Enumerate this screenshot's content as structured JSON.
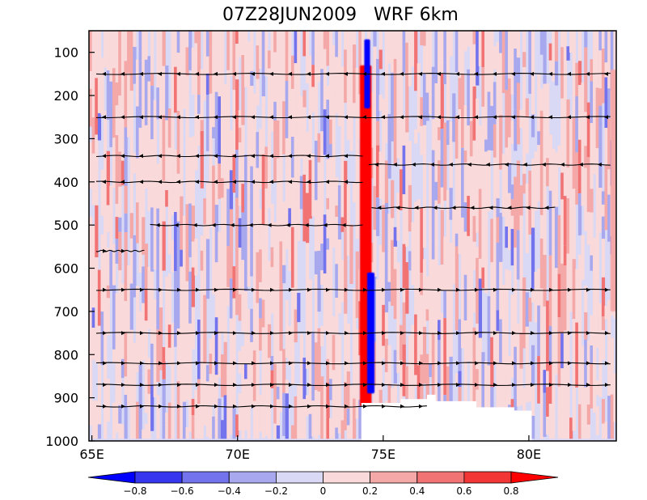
{
  "chart_data": {
    "type": "heatmap",
    "title_left": "07Z28JUN2009",
    "title_right": "WRF 6km",
    "xlabel": "",
    "ylabel": "",
    "x_range": [
      64.9,
      83.0
    ],
    "y_range": [
      1000,
      50
    ],
    "y_axis_reversed": true,
    "x_ticks": [
      {
        "value": 65,
        "label": "65E"
      },
      {
        "value": 70,
        "label": "70E"
      },
      {
        "value": 75,
        "label": "75E"
      },
      {
        "value": 80,
        "label": "80E"
      }
    ],
    "y_ticks": [
      {
        "value": 100,
        "label": "100"
      },
      {
        "value": 200,
        "label": "200"
      },
      {
        "value": 300,
        "label": "300"
      },
      {
        "value": 400,
        "label": "400"
      },
      {
        "value": 500,
        "label": "500"
      },
      {
        "value": 600,
        "label": "600"
      },
      {
        "value": 700,
        "label": "700"
      },
      {
        "value": 800,
        "label": "800"
      },
      {
        "value": 900,
        "label": "900"
      },
      {
        "value": 1000,
        "label": "1000"
      }
    ],
    "colorbar": {
      "levels": [
        "-0.8",
        "-0.6",
        "-0.4",
        "-0.2",
        "0",
        "0.2",
        "0.4",
        "0.6",
        "0.8"
      ],
      "colors": [
        "#0000ff",
        "#3636ee",
        "#7373ee",
        "#a8a8ee",
        "#d9d9f5",
        "#f9d9d9",
        "#f4a8a8",
        "#f27373",
        "#f23636",
        "#ff0000"
      ]
    },
    "shaded_features": [
      {
        "name": "strong-updraft-band",
        "x_range": [
          74.2,
          74.6
        ],
        "p_range": [
          920,
          130
        ],
        "value": 0.9
      },
      {
        "name": "upper-downdraft-core",
        "x_range": [
          74.35,
          74.55
        ],
        "p_range": [
          230,
          70
        ],
        "value": -0.9
      },
      {
        "name": "lower-downdraft-core",
        "x_range": [
          74.45,
          74.7
        ],
        "p_range": [
          890,
          610
        ],
        "value": -0.9
      },
      {
        "name": "east-edge-updraft",
        "x_range": [
          82.8,
          83.0
        ],
        "p_range": [
          700,
          140
        ],
        "value": 0.4
      }
    ],
    "streamlines": [
      {
        "p": 150,
        "x_start": 65.0,
        "x_end": 82.8,
        "direction": "west"
      },
      {
        "p": 250,
        "x_start": 65.0,
        "x_end": 82.8,
        "direction": "west"
      },
      {
        "p": 340,
        "x_start": 65.0,
        "x_end": 74.3,
        "direction": "west"
      },
      {
        "p": 360,
        "x_start": 74.5,
        "x_end": 82.8,
        "direction": "west"
      },
      {
        "p": 400,
        "x_start": 65.0,
        "x_end": 74.3,
        "direction": "west"
      },
      {
        "p": 500,
        "x_start": 67.0,
        "x_end": 74.3,
        "direction": "west"
      },
      {
        "p": 460,
        "x_start": 74.6,
        "x_end": 80.9,
        "direction": "west"
      },
      {
        "p": 560,
        "x_start": 65.0,
        "x_end": 66.8,
        "direction": "east"
      },
      {
        "p": 650,
        "x_start": 65.0,
        "x_end": 82.8,
        "direction": "east"
      },
      {
        "p": 750,
        "x_start": 65.0,
        "x_end": 82.8,
        "direction": "east"
      },
      {
        "p": 820,
        "x_start": 65.0,
        "x_end": 82.8,
        "direction": "east"
      },
      {
        "p": 870,
        "x_start": 65.0,
        "x_end": 82.8,
        "direction": "east"
      },
      {
        "p": 920,
        "x_start": 65.0,
        "x_end": 76.5,
        "direction": "east"
      }
    ]
  }
}
